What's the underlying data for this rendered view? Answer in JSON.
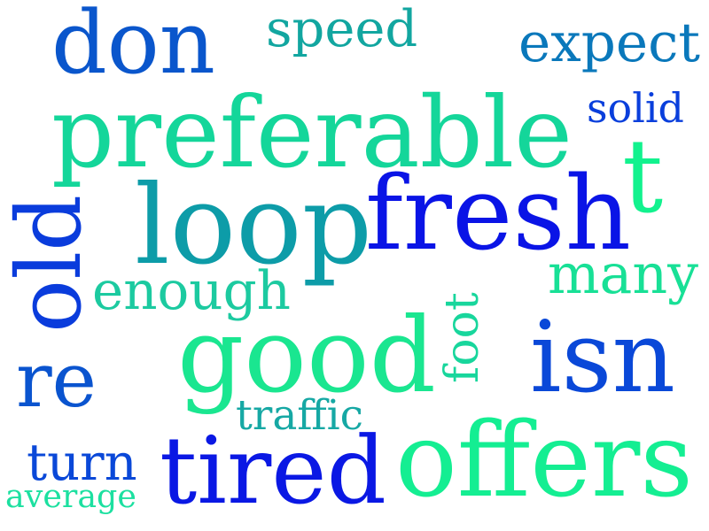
{
  "words": [
    {
      "id": "don",
      "text": "don",
      "color": "#0a56cc"
    },
    {
      "id": "speed",
      "text": "speed",
      "color": "#12a6a0"
    },
    {
      "id": "expect",
      "text": "expect",
      "color": "#0a78bb"
    },
    {
      "id": "preferable",
      "text": "preferable",
      "color": "#14d69a"
    },
    {
      "id": "solid",
      "text": "solid",
      "color": "#0a3fdc"
    },
    {
      "id": "t",
      "text": "t",
      "color": "#12f28e"
    },
    {
      "id": "loop",
      "text": "loop",
      "color": "#0d9ca8"
    },
    {
      "id": "fresh",
      "text": "fresh",
      "color": "#0a14e6"
    },
    {
      "id": "old",
      "text": "old",
      "color": "#0a3cdc"
    },
    {
      "id": "many",
      "text": "many",
      "color": "#18e096"
    },
    {
      "id": "enough",
      "text": "enough",
      "color": "#1ccaa0"
    },
    {
      "id": "foot",
      "text": "foot",
      "color": "#18d69c"
    },
    {
      "id": "good",
      "text": "good",
      "color": "#1ae690"
    },
    {
      "id": "isn",
      "text": "isn",
      "color": "#0a48d8"
    },
    {
      "id": "re",
      "text": "re",
      "color": "#0a54cf"
    },
    {
      "id": "traffic",
      "text": "traffic",
      "color": "#16a8a4"
    },
    {
      "id": "turn",
      "text": "turn",
      "color": "#0a48d8"
    },
    {
      "id": "tired",
      "text": "tired",
      "color": "#0a18e4"
    },
    {
      "id": "offers",
      "text": "offers",
      "color": "#14ee92"
    },
    {
      "id": "average",
      "text": "average",
      "color": "#1ce0a0"
    }
  ]
}
